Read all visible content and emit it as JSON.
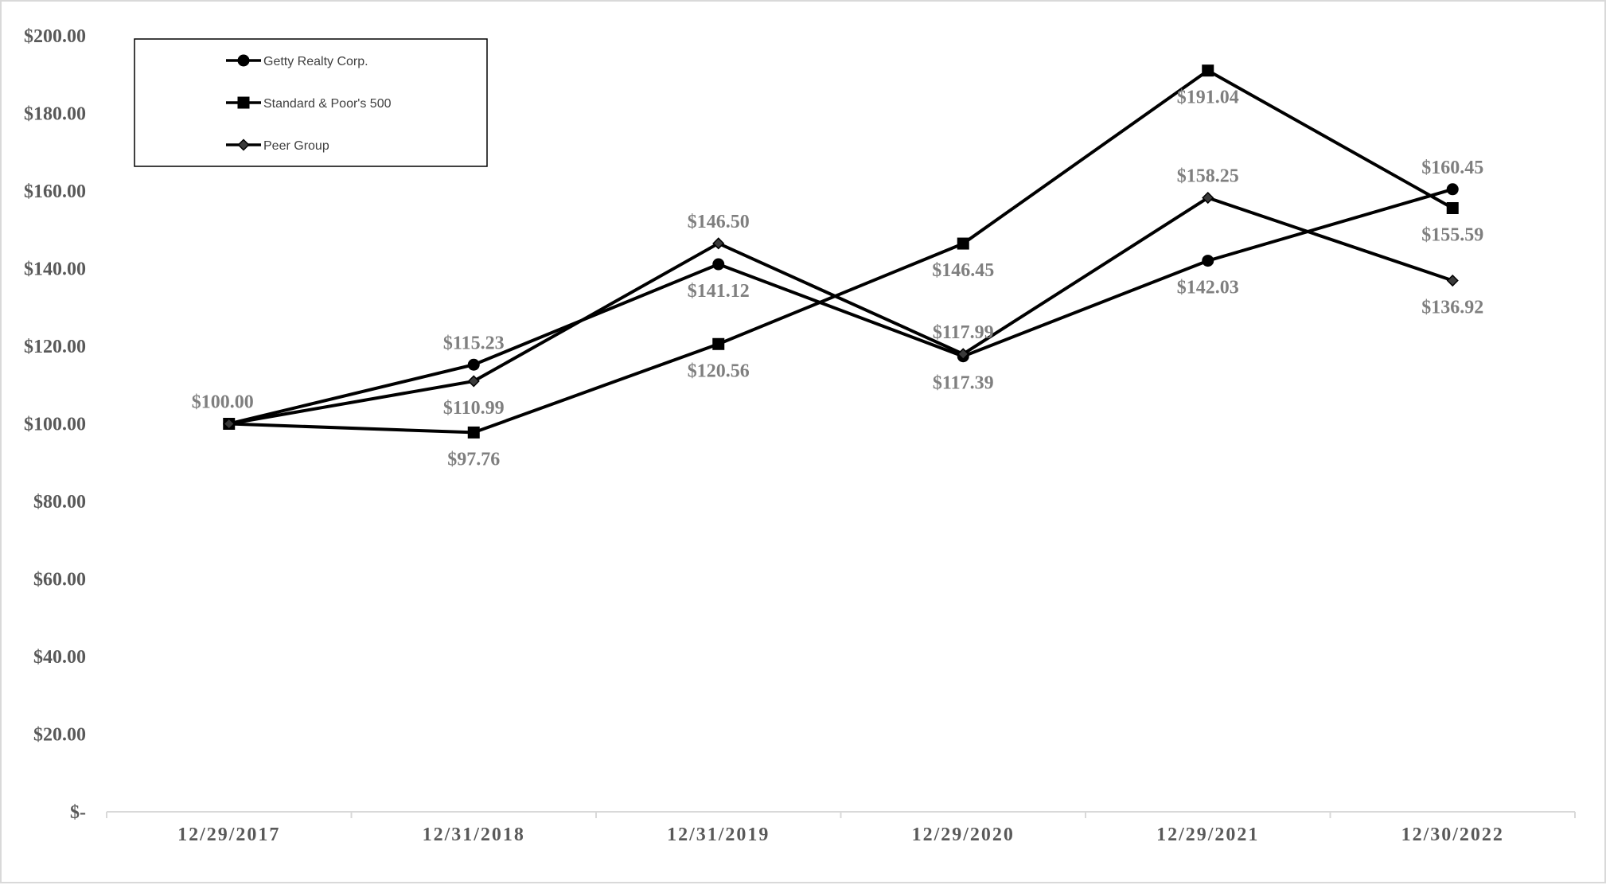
{
  "chart_data": {
    "type": "line",
    "categories": [
      "12/29/2017",
      "12/31/2018",
      "12/31/2019",
      "12/29/2020",
      "12/29/2021",
      "12/30/2022"
    ],
    "ylim": [
      0,
      200
    ],
    "ytick_values": [
      0,
      20,
      40,
      60,
      80,
      100,
      120,
      140,
      160,
      180,
      200
    ],
    "ytick_labels": [
      "$-",
      "$20.00",
      "$40.00",
      "$60.00",
      "$80.00",
      "$100.00",
      "$120.00",
      "$140.00",
      "$160.00",
      "$180.00",
      "$200.00"
    ],
    "grid": false,
    "legend_position": "top-left",
    "series": [
      {
        "name": "Getty Realty Corp.",
        "marker": "circle",
        "values": [
          100.0,
          115.23,
          141.12,
          117.39,
          142.03,
          160.45
        ],
        "labels": [
          "$100.00",
          "$115.23",
          "$141.12",
          "$117.39",
          "$142.03",
          "$160.45"
        ]
      },
      {
        "name": "Standard & Poor's 500",
        "marker": "square",
        "values": [
          100.0,
          97.76,
          120.56,
          146.45,
          191.04,
          155.59
        ],
        "labels": [
          "",
          "$97.76",
          "$120.56",
          "$146.45",
          "$191.04",
          "$155.59"
        ]
      },
      {
        "name": "Peer Group",
        "marker": "diamond",
        "values": [
          100.0,
          110.99,
          146.5,
          117.99,
          158.25,
          136.92
        ],
        "labels": [
          "",
          "$110.99",
          "$146.50",
          "$117.99",
          "$158.25",
          "$136.92"
        ]
      }
    ],
    "colors": {
      "line": "#000000",
      "axis": "#d9d9d9",
      "tick_text": "#595959",
      "data_label_text": "#7f7f7f"
    }
  }
}
